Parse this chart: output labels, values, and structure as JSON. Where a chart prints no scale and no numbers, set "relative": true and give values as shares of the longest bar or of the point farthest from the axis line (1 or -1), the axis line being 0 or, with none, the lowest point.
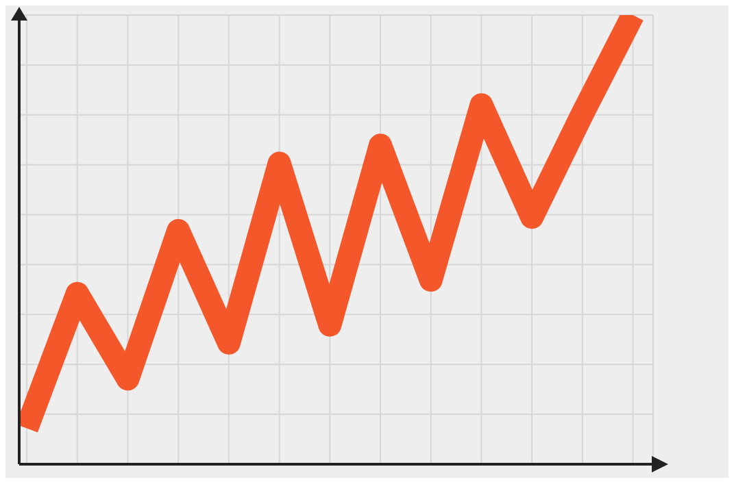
{
  "chart_data": {
    "type": "line",
    "relative": true,
    "categories": [
      null,
      null,
      null,
      null,
      null,
      null,
      null,
      null,
      null,
      null,
      null,
      null,
      null
    ],
    "series": [
      {
        "color": "#f4572a",
        "values": [
          0.08,
          0.38,
          0.19,
          0.52,
          0.27,
          0.67,
          0.31,
          0.71,
          0.41,
          0.8,
          0.55,
          0.78,
          1
        ]
      }
    ],
    "grid": true,
    "marker": "none",
    "line_style": "solid"
  }
}
